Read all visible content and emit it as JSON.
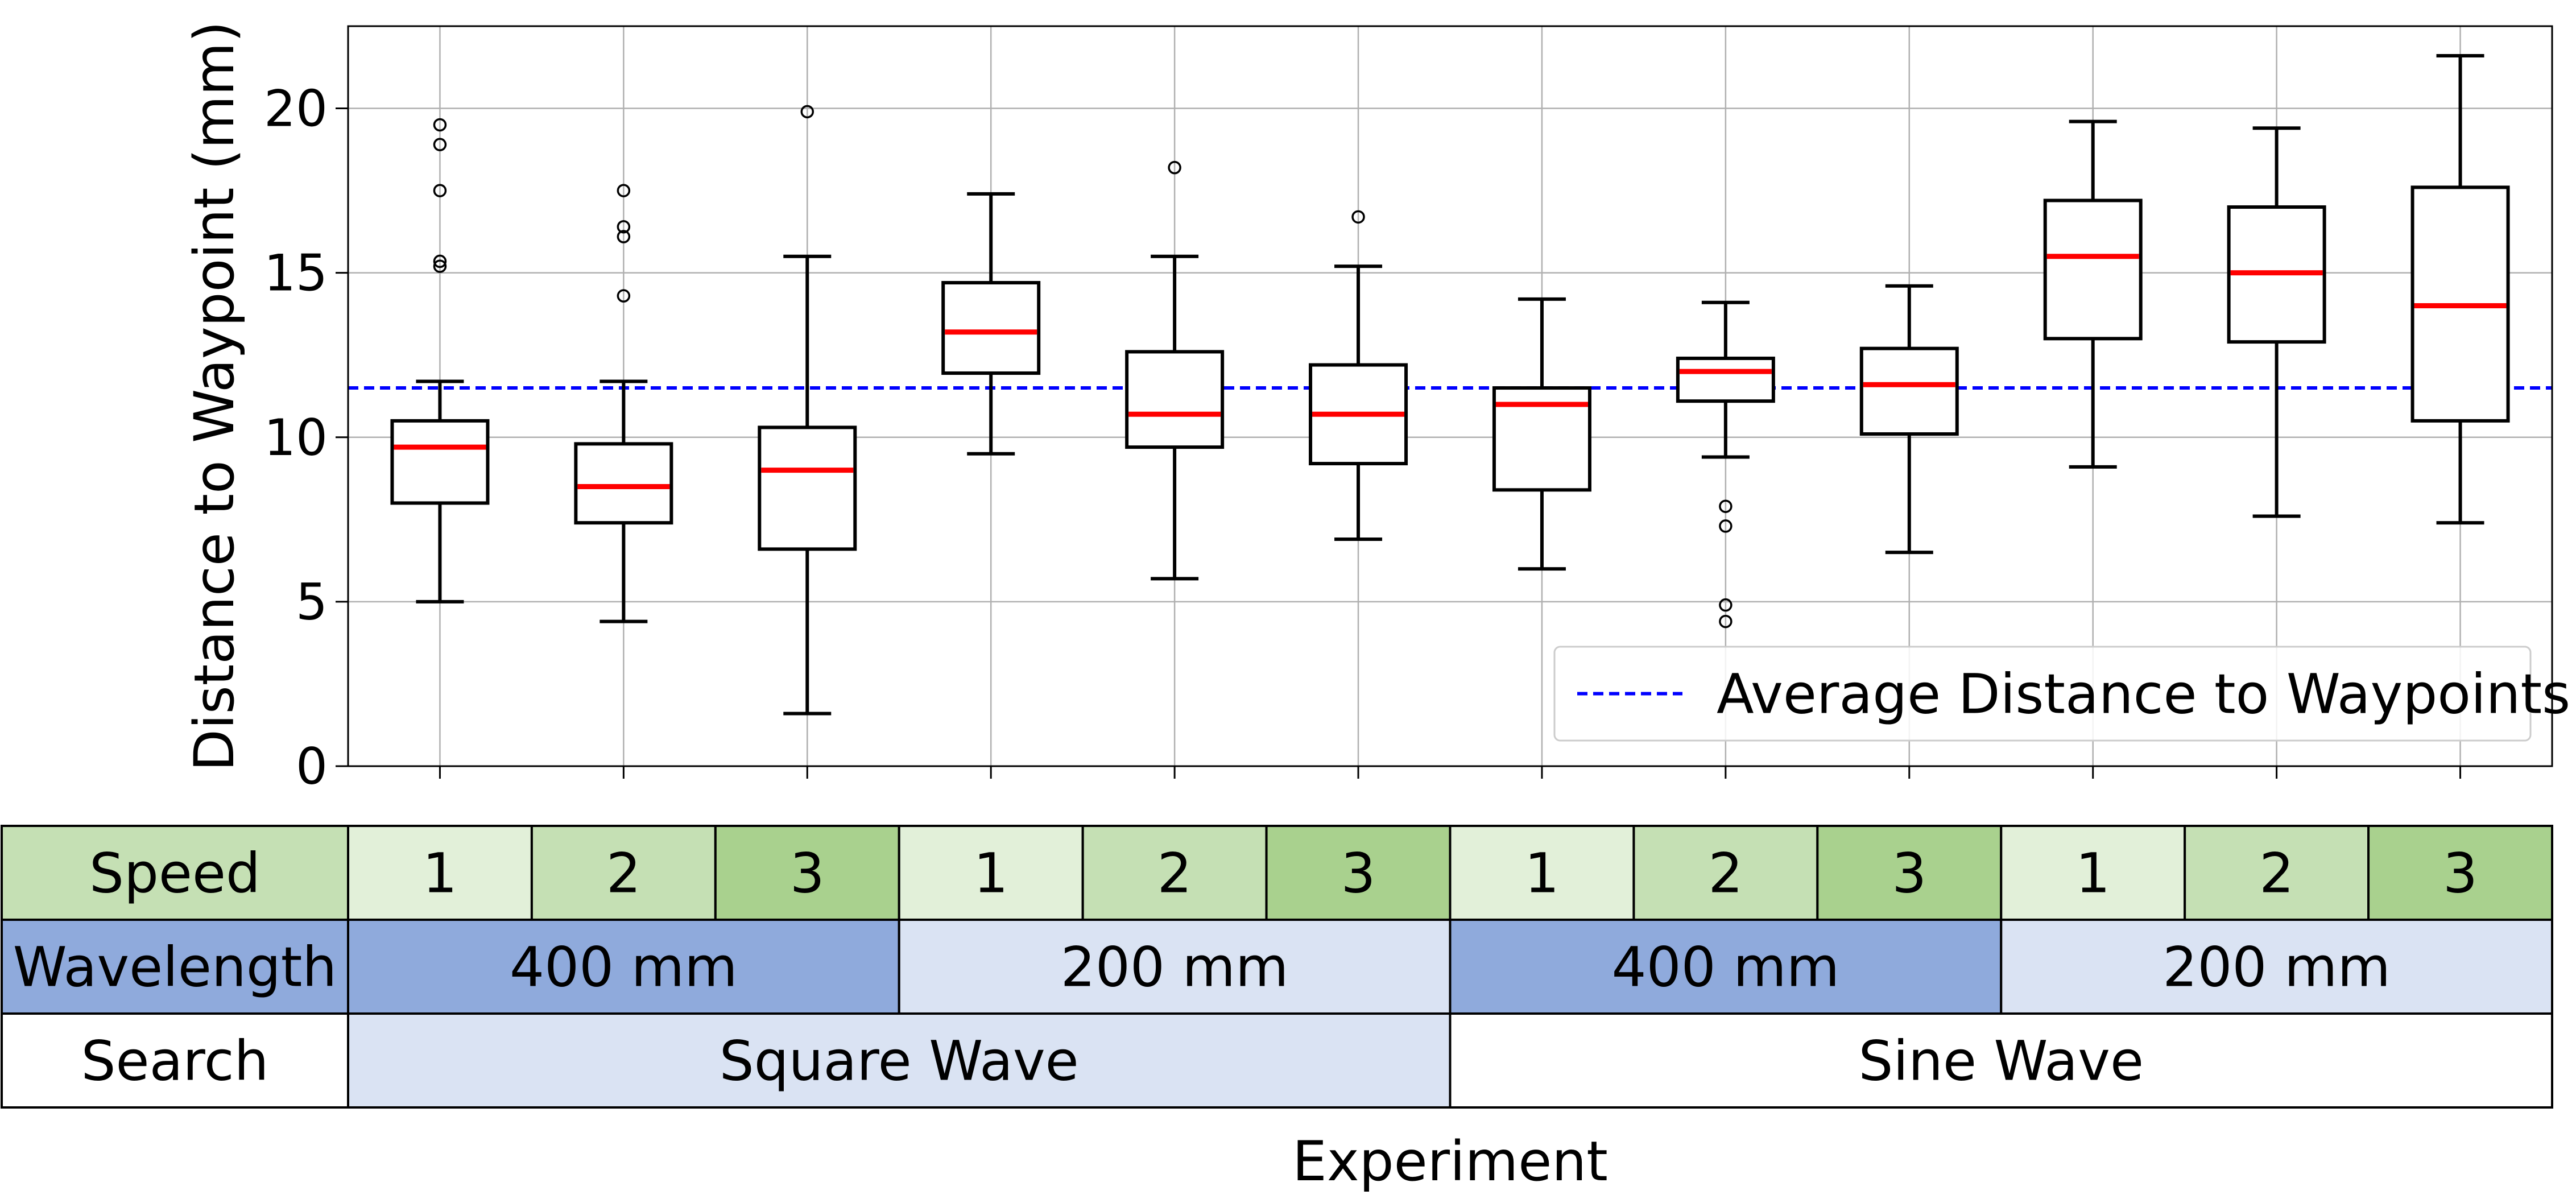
{
  "chart_data": {
    "type": "box",
    "ylabel": "Distance to Waypoint (mm)",
    "xlabel": "Experiment",
    "ylim": [
      0,
      22.5
    ],
    "yticks": [
      0,
      5,
      10,
      15,
      20
    ],
    "grid": true,
    "boxes": [
      {
        "whislo": 5.0,
        "q1": 8.0,
        "med": 9.7,
        "q3": 10.5,
        "whishi": 11.7,
        "fliers": [
          15.2,
          15.35,
          17.5,
          18.9,
          19.5
        ]
      },
      {
        "whislo": 4.4,
        "q1": 7.4,
        "med": 8.5,
        "q3": 9.8,
        "whishi": 11.7,
        "fliers": [
          14.3,
          16.1,
          16.4,
          17.5
        ]
      },
      {
        "whislo": 1.6,
        "q1": 6.6,
        "med": 9.0,
        "q3": 10.3,
        "whishi": 15.5,
        "fliers": [
          19.9
        ]
      },
      {
        "whislo": 9.5,
        "q1": 11.95,
        "med": 13.2,
        "q3": 14.7,
        "whishi": 17.4,
        "fliers": []
      },
      {
        "whislo": 5.7,
        "q1": 9.7,
        "med": 10.7,
        "q3": 12.6,
        "whishi": 15.5,
        "fliers": [
          18.2
        ]
      },
      {
        "whislo": 6.9,
        "q1": 9.2,
        "med": 10.7,
        "q3": 12.2,
        "whishi": 15.2,
        "fliers": [
          16.7
        ]
      },
      {
        "whislo": 6.0,
        "q1": 8.4,
        "med": 11.0,
        "q3": 11.5,
        "whishi": 14.2,
        "fliers": []
      },
      {
        "whislo": 9.4,
        "q1": 11.1,
        "med": 12.0,
        "q3": 12.4,
        "whishi": 14.1,
        "fliers": [
          4.4,
          4.9,
          7.3,
          7.9
        ]
      },
      {
        "whislo": 6.5,
        "q1": 10.1,
        "med": 11.6,
        "q3": 12.7,
        "whishi": 14.6,
        "fliers": []
      },
      {
        "whislo": 9.1,
        "q1": 13.0,
        "med": 15.5,
        "q3": 17.2,
        "whishi": 19.6,
        "fliers": []
      },
      {
        "whislo": 7.6,
        "q1": 12.9,
        "med": 15.0,
        "q3": 17.0,
        "whishi": 19.4,
        "fliers": []
      },
      {
        "whislo": 7.4,
        "q1": 10.5,
        "med": 14.0,
        "q3": 17.6,
        "whishi": 21.6,
        "fliers": []
      }
    ],
    "reference_line": {
      "value": 11.5,
      "label": "Average Distance to Waypoints",
      "color": "#0000ff"
    },
    "legend_position": "lower right",
    "colors": {
      "box": "#000000",
      "median": "#ff0000",
      "grid": "#b0b0b0"
    }
  },
  "table": {
    "rows": [
      {
        "header": "Speed",
        "header_color": "#c5e0b4",
        "cells": [
          {
            "text": "1",
            "span": 1,
            "color": "#e2f0d9"
          },
          {
            "text": "2",
            "span": 1,
            "color": "#c5e0b4"
          },
          {
            "text": "3",
            "span": 1,
            "color": "#a9d18e"
          },
          {
            "text": "1",
            "span": 1,
            "color": "#e2f0d9"
          },
          {
            "text": "2",
            "span": 1,
            "color": "#c5e0b4"
          },
          {
            "text": "3",
            "span": 1,
            "color": "#a9d18e"
          },
          {
            "text": "1",
            "span": 1,
            "color": "#e2f0d9"
          },
          {
            "text": "2",
            "span": 1,
            "color": "#c5e0b4"
          },
          {
            "text": "3",
            "span": 1,
            "color": "#a9d18e"
          },
          {
            "text": "1",
            "span": 1,
            "color": "#e2f0d9"
          },
          {
            "text": "2",
            "span": 1,
            "color": "#c5e0b4"
          },
          {
            "text": "3",
            "span": 1,
            "color": "#a9d18e"
          }
        ]
      },
      {
        "header": "Wavelength",
        "header_color": "#8faadc",
        "cells": [
          {
            "text": "400 mm",
            "span": 3,
            "color": "#8faadc"
          },
          {
            "text": "200 mm",
            "span": 3,
            "color": "#dae3f3"
          },
          {
            "text": "400 mm",
            "span": 3,
            "color": "#8faadc"
          },
          {
            "text": "200 mm",
            "span": 3,
            "color": "#dae3f3"
          }
        ]
      },
      {
        "header": "Search",
        "header_color": "#ffffff",
        "cells": [
          {
            "text": "Square Wave",
            "span": 6,
            "color": "#dae3f3"
          },
          {
            "text": "Sine Wave",
            "span": 6,
            "color": "#ffffff"
          }
        ]
      }
    ]
  }
}
